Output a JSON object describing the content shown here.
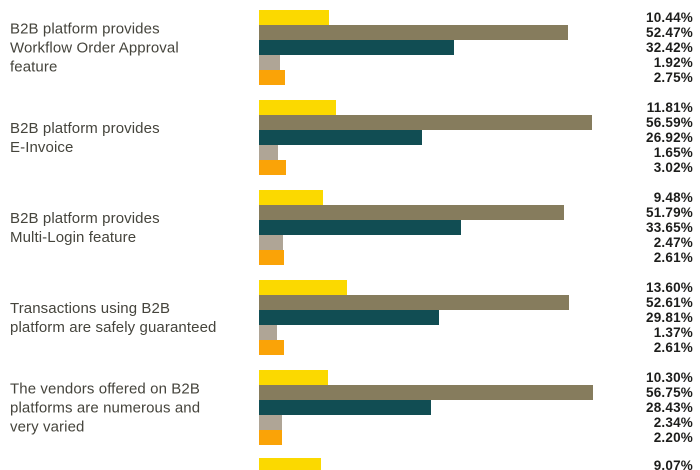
{
  "chart_data": {
    "type": "bar",
    "orientation": "horizontal",
    "unit": "%",
    "title": "",
    "xlabel": "",
    "ylabel": "",
    "grid": false,
    "legend_visible": false,
    "axis_visible": false,
    "value_labels_position": "right",
    "series_colors": [
      "#fbd900",
      "#867c5d",
      "#114d53",
      "#afa596",
      "#faa307"
    ],
    "series_color_names": [
      "yellow",
      "olive",
      "teal",
      "tan",
      "orange"
    ],
    "groups": [
      {
        "label": "B2B platform provides Workflow Order Approval feature",
        "label_lines": [
          "B2B platform provides",
          "Workflow Order Approval",
          "feature"
        ],
        "values": [
          10.44,
          52.47,
          32.42,
          1.92,
          2.75
        ],
        "value_labels": [
          "10.44%",
          "52.47%",
          "32.42%",
          "1.92%",
          "2.75%"
        ]
      },
      {
        "label": "B2B platform provides E-Invoice",
        "label_lines": [
          "B2B platform provides",
          "E-Invoice"
        ],
        "values": [
          11.81,
          56.59,
          26.92,
          1.65,
          3.02
        ],
        "value_labels": [
          "11.81%",
          "56.59%",
          "26.92%",
          "1.65%",
          "3.02%"
        ]
      },
      {
        "label": "B2B platform provides Multi-Login feature",
        "label_lines": [
          "B2B platform provides",
          "Multi-Login feature"
        ],
        "values": [
          9.48,
          51.79,
          33.65,
          2.47,
          2.61
        ],
        "value_labels": [
          "9.48%",
          "51.79%",
          "33.65%",
          "2.47%",
          "2.61%"
        ]
      },
      {
        "label": "Transactions using B2B platform are safely guaranteed",
        "label_lines": [
          "Transactions using B2B",
          "platform are safely guaranteed"
        ],
        "values": [
          13.6,
          52.61,
          29.81,
          1.37,
          2.61
        ],
        "value_labels": [
          "13.60%",
          "52.61%",
          "29.81%",
          "1.37%",
          "2.61%"
        ]
      },
      {
        "label": "The vendors offered on B2B platforms are numerous and very varied",
        "label_lines": [
          "The vendors offered on B2B",
          "platforms are numerous and",
          "very varied"
        ],
        "values": [
          10.3,
          56.75,
          28.43,
          2.34,
          2.2
        ],
        "value_labels": [
          "10.30%",
          "56.75%",
          "28.43%",
          "2.34%",
          "2.20%"
        ]
      },
      {
        "label": "",
        "label_lines": [],
        "values": [
          9.07
        ],
        "value_labels": [
          "9.07%"
        ],
        "partial": true
      }
    ]
  }
}
